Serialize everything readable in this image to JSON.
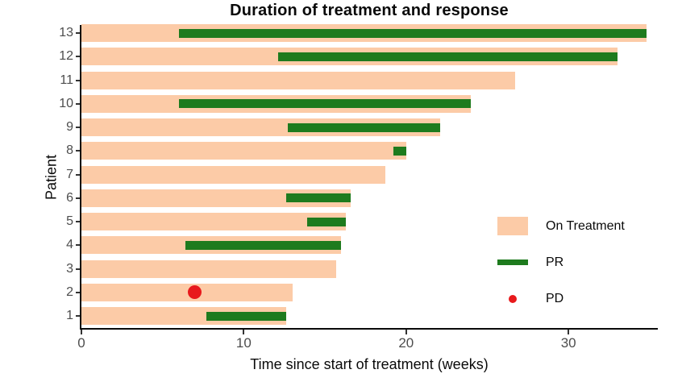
{
  "title": "Duration of treatment and response",
  "x_axis": {
    "label": "Time since start of treatment (weeks)",
    "ticks": [
      0,
      10,
      20,
      30
    ],
    "max_weeks": 35.5
  },
  "y_axis": {
    "label": "Patient"
  },
  "legend": {
    "items": [
      {
        "label": "On Treatment",
        "type": "rect",
        "color": "#FCCBA7"
      },
      {
        "label": "PR",
        "type": "line",
        "color": "#1E7B1E"
      },
      {
        "label": "PD",
        "type": "dot",
        "color": "#E8191C"
      }
    ]
  },
  "colors": {
    "on_treatment": "#FCCBA7",
    "pr": "#1E7B1E",
    "pd": "#E8191C",
    "axis": "#0a0a0a",
    "tick_label": "#4D4D4D"
  },
  "chart_data": {
    "type": "bar",
    "orientation": "horizontal",
    "title": "Duration of treatment and response",
    "xlabel": "Time since start of treatment (weeks)",
    "ylabel": "Patient",
    "xlim": [
      0,
      35.5
    ],
    "x_ticks": [
      0,
      10,
      20,
      30
    ],
    "grid": false,
    "legend_position": "inside-right",
    "series_legend": [
      "On Treatment",
      "PR",
      "PD"
    ],
    "patients": [
      {
        "id": 13,
        "on_treatment_weeks": 34.8,
        "pr": [
          6.0,
          34.8
        ],
        "pd": null
      },
      {
        "id": 12,
        "on_treatment_weeks": 33.0,
        "pr": [
          12.1,
          33.0
        ],
        "pd": null
      },
      {
        "id": 11,
        "on_treatment_weeks": 26.7,
        "pr": null,
        "pd": null
      },
      {
        "id": 10,
        "on_treatment_weeks": 24.0,
        "pr": [
          6.0,
          24.0
        ],
        "pd": null
      },
      {
        "id": 9,
        "on_treatment_weeks": 22.1,
        "pr": [
          12.7,
          22.1
        ],
        "pd": null
      },
      {
        "id": 8,
        "on_treatment_weeks": 20.0,
        "pr": [
          19.2,
          20.0
        ],
        "pd": null
      },
      {
        "id": 7,
        "on_treatment_weeks": 18.7,
        "pr": null,
        "pd": null
      },
      {
        "id": 6,
        "on_treatment_weeks": 16.6,
        "pr": [
          12.6,
          16.6
        ],
        "pd": null
      },
      {
        "id": 5,
        "on_treatment_weeks": 16.3,
        "pr": [
          13.9,
          16.3
        ],
        "pd": null
      },
      {
        "id": 4,
        "on_treatment_weeks": 16.0,
        "pr": [
          6.4,
          16.0
        ],
        "pd": null
      },
      {
        "id": 3,
        "on_treatment_weeks": 15.7,
        "pr": null,
        "pd": null
      },
      {
        "id": 2,
        "on_treatment_weeks": 13.0,
        "pr": null,
        "pd": 7.0
      },
      {
        "id": 1,
        "on_treatment_weeks": 12.6,
        "pr": [
          7.7,
          12.6
        ],
        "pd": null
      }
    ]
  }
}
